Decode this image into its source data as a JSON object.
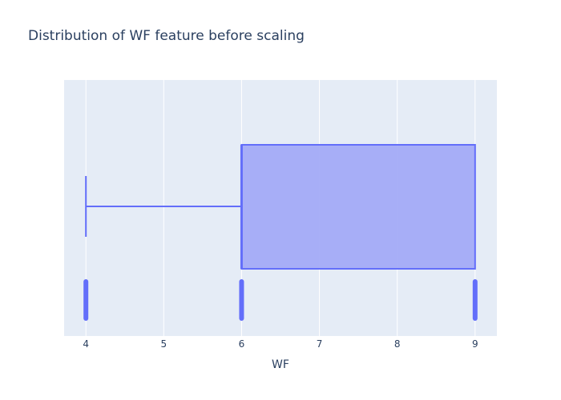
{
  "chart_data": {
    "type": "box",
    "title": "Distribution of WF feature before scaling",
    "xlabel": "WF",
    "ylabel": "",
    "xlim": [
      3.72,
      9.28
    ],
    "x_ticks": [
      4,
      5,
      6,
      7,
      8,
      9
    ],
    "grid": true,
    "legend": "none",
    "box": {
      "min": 4,
      "q1": 6,
      "median": 6,
      "q3": 9,
      "max": 9
    },
    "points": [
      4,
      6,
      9
    ],
    "colors": {
      "series": "#636efa",
      "box_fill": "#a3abf7",
      "plot_bg": "#e5ecf6",
      "grid": "#ffffff",
      "text": "#2a3f5f"
    }
  }
}
